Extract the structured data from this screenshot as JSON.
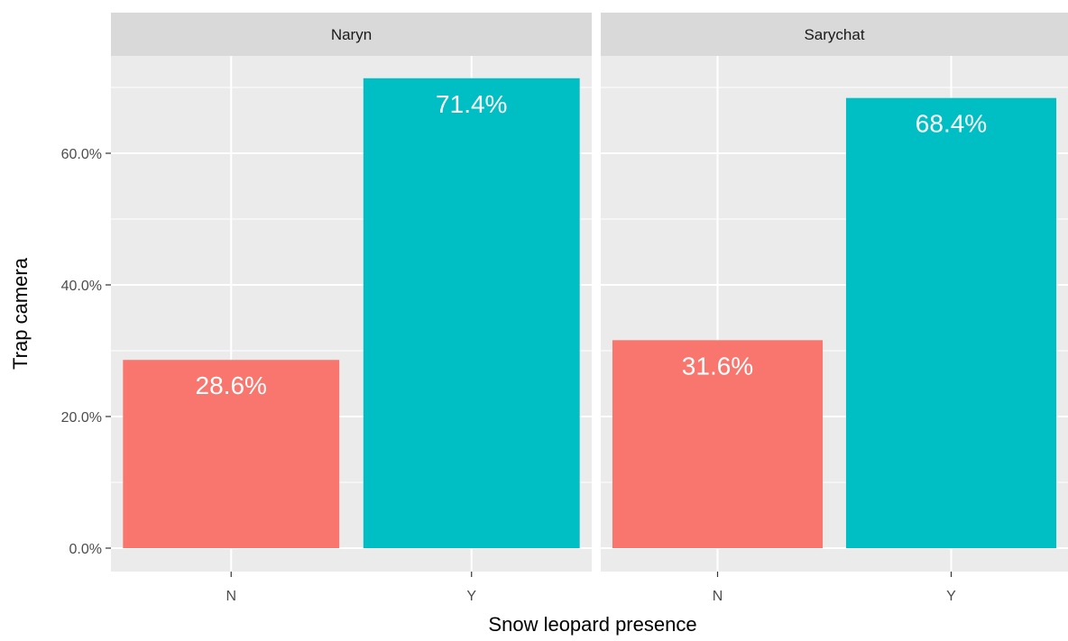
{
  "chart_data": {
    "type": "bar",
    "facet_by": "site",
    "xlabel": "Snow leopard presence",
    "ylabel": "Trap camera",
    "ylim": [
      0,
      0.75
    ],
    "y_ticks": [
      0,
      0.2,
      0.4,
      0.6
    ],
    "y_tick_labels": [
      "0.0%",
      "20.0%",
      "40.0%",
      "60.0%"
    ],
    "categories": [
      "N",
      "Y"
    ],
    "colors": {
      "N": "#F8766D",
      "Y": "#00BFC4"
    },
    "panel_background": "#ebebeb",
    "strip_background": "#d9d9d9",
    "grid": true,
    "legend": "none",
    "facets": [
      {
        "name": "Naryn",
        "values": [
          0.286,
          0.714
        ],
        "labels": [
          "28.6%",
          "71.4%"
        ]
      },
      {
        "name": "Sarychat",
        "values": [
          0.316,
          0.684
        ],
        "labels": [
          "31.6%",
          "68.4%"
        ]
      }
    ]
  }
}
